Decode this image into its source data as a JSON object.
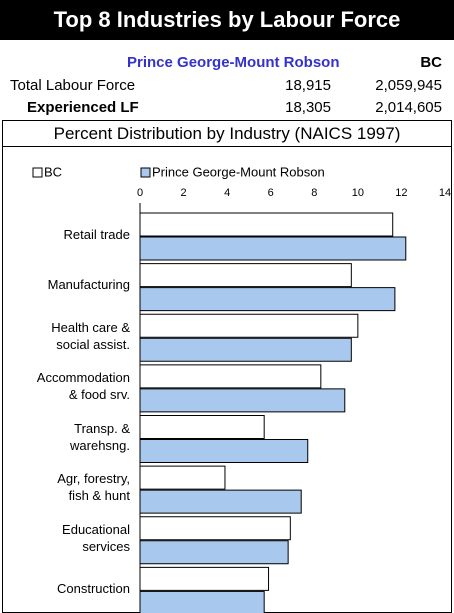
{
  "header": {
    "title": "Top 8 Industries by Labour Force",
    "region": "Prince George-Mount Robson",
    "province": "BC",
    "rows": [
      [
        "Total Labour Force",
        "18,915",
        "2,059,945"
      ],
      [
        "Experienced LF",
        "18,305",
        "2,014,605"
      ]
    ],
    "subtitle": "Percent Distribution by Industry (NAICS 1997)"
  },
  "chart_data": {
    "type": "hbar",
    "categories": [
      "Retail trade",
      "Manufacturing",
      "Health care &\nsocial assist.",
      "Accommodation\n& food srv.",
      "Transp. &\nwarehsng.",
      "Agr, forestry,\nfish & hunt",
      "Educational\nservices",
      "Construction"
    ],
    "series": [
      {
        "name": "BC",
        "color": "#ffffff",
        "values": [
          11.6,
          9.7,
          10.0,
          8.3,
          5.7,
          3.9,
          6.9,
          5.9
        ]
      },
      {
        "name": "Prince George-Mount Robson",
        "color": "#a9c8ee",
        "values": [
          12.2,
          11.7,
          9.7,
          9.4,
          7.7,
          7.4,
          6.8,
          5.7
        ]
      }
    ],
    "xlim": [
      0,
      14
    ],
    "xticks": [
      0,
      2,
      4,
      6,
      8,
      10,
      12,
      14
    ],
    "grid": false,
    "legend": "top"
  }
}
